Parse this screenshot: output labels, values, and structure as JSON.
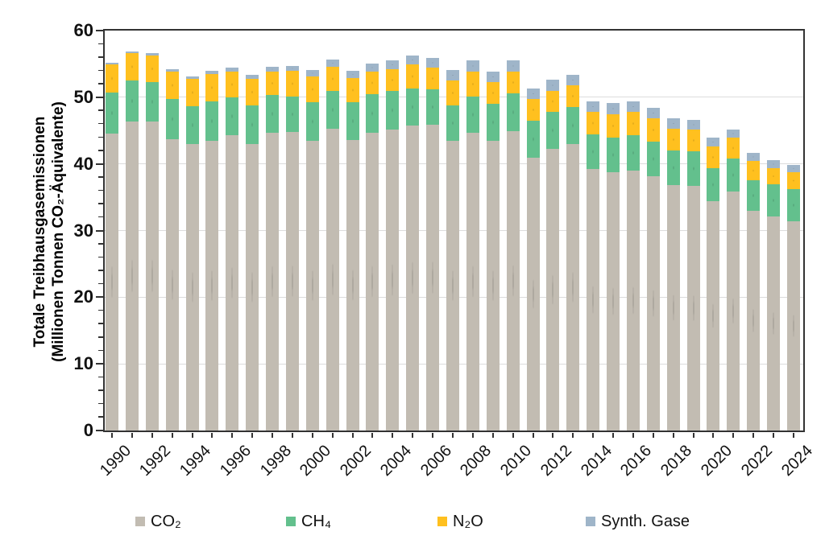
{
  "chart_data": {
    "type": "bar",
    "stacked": true,
    "title": "",
    "ylabel_line1": "Totale Treibhausgasemissionen",
    "ylabel_line2": "(Millionen Tonnen CO₂-Äquivalente)",
    "ylim": [
      0,
      60
    ],
    "ytick_major_step": 10,
    "ytick_minor_step": 2,
    "ytick_labels": [
      "0",
      "10",
      "20",
      "30",
      "40",
      "50",
      "60"
    ],
    "grid": "horizontal major gridlines, light gray",
    "legend_position": "bottom",
    "categories": [
      1990,
      1991,
      1992,
      1993,
      1994,
      1995,
      1996,
      1997,
      1998,
      1999,
      2000,
      2001,
      2002,
      2003,
      2004,
      2005,
      2006,
      2007,
      2008,
      2009,
      2010,
      2011,
      2012,
      2013,
      2014,
      2015,
      2016,
      2017,
      2018,
      2019,
      2020,
      2021,
      2022,
      2023,
      2024
    ],
    "xtick_labels": [
      "1990",
      "1992",
      "1994",
      "1996",
      "1998",
      "2000",
      "2002",
      "2004",
      "2006",
      "2008",
      "2010",
      "2012",
      "2014",
      "2016",
      "2018",
      "2020",
      "2022",
      "2024"
    ],
    "series": [
      {
        "name": "CO₂",
        "color": "#C2BCB2",
        "values": [
          44.5,
          46.3,
          46.3,
          43.7,
          43.0,
          43.5,
          44.3,
          43.0,
          44.7,
          44.8,
          43.5,
          45.3,
          43.6,
          44.7,
          45.2,
          45.8,
          45.9,
          43.5,
          44.7,
          43.5,
          44.9,
          40.9,
          42.2,
          43.0,
          39.2,
          38.8,
          39.0,
          38.2,
          36.8,
          36.7,
          34.4,
          35.9,
          33.0,
          32.1,
          31.4
        ]
      },
      {
        "name": "CH₄",
        "color": "#63C08D",
        "values": [
          6.2,
          6.2,
          6.0,
          6.0,
          5.7,
          5.9,
          5.7,
          5.8,
          5.6,
          5.3,
          5.8,
          5.6,
          5.6,
          5.8,
          5.7,
          5.5,
          5.3,
          5.3,
          5.4,
          5.5,
          5.7,
          5.6,
          5.6,
          5.5,
          5.2,
          5.1,
          5.3,
          5.1,
          5.2,
          5.2,
          5.0,
          4.9,
          4.6,
          4.8,
          4.8
        ]
      },
      {
        "name": "N₂O",
        "color": "#FFC01F",
        "values": [
          4.2,
          4.1,
          4.0,
          4.1,
          4.0,
          4.1,
          3.9,
          4.0,
          3.6,
          3.9,
          3.8,
          3.7,
          3.7,
          3.3,
          3.3,
          3.6,
          3.3,
          3.7,
          3.7,
          3.3,
          3.2,
          3.2,
          3.2,
          3.3,
          3.4,
          3.5,
          3.5,
          3.5,
          3.3,
          3.2,
          3.2,
          3.1,
          2.8,
          2.4,
          2.5
        ]
      },
      {
        "name": "Synth. Gase",
        "color": "#9FB5C9",
        "values": [
          0.3,
          0.3,
          0.3,
          0.4,
          0.4,
          0.5,
          0.5,
          0.6,
          0.7,
          0.7,
          1.0,
          1.0,
          1.1,
          1.2,
          1.3,
          1.4,
          1.4,
          1.6,
          1.7,
          1.6,
          1.7,
          1.6,
          1.6,
          1.6,
          1.6,
          1.7,
          1.6,
          1.6,
          1.5,
          1.5,
          1.4,
          1.3,
          1.3,
          1.3,
          1.2
        ]
      }
    ]
  }
}
